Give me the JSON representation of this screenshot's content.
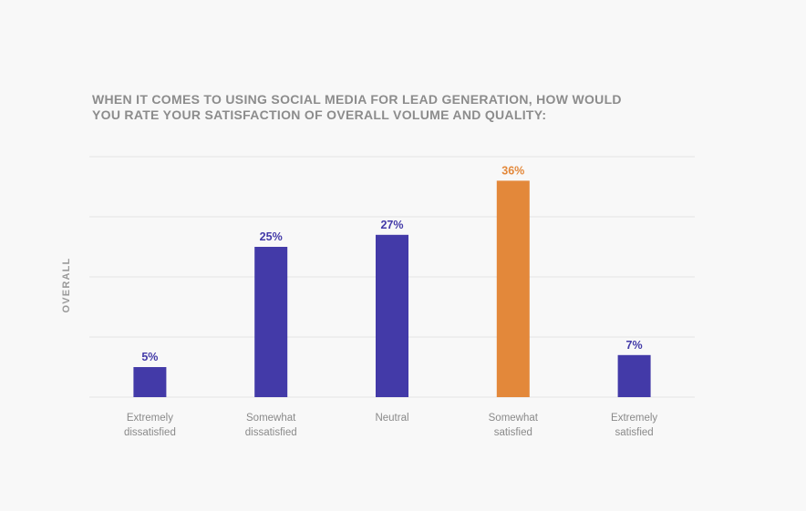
{
  "chart_data": {
    "type": "bar",
    "title_lines": [
      "WHEN IT COMES TO USING SOCIAL MEDIA FOR LEAD GENERATION, HOW WOULD",
      "YOU RATE YOUR SATISFACTION OF OVERALL VOLUME AND QUALITY:"
    ],
    "ylabel": "OVERALL",
    "xlabel": "",
    "categories": [
      [
        "Extremely",
        "dissatisfied"
      ],
      [
        "Somewhat",
        "dissatisfied"
      ],
      [
        "Neutral"
      ],
      [
        "Somewhat",
        "satisfied"
      ],
      [
        "Extremely",
        "satisfied"
      ]
    ],
    "values": [
      5,
      25,
      27,
      36,
      7
    ],
    "value_labels": [
      "5%",
      "25%",
      "27%",
      "36%",
      "7%"
    ],
    "ylim": [
      0,
      40
    ],
    "grid": true,
    "highlight_index": 3,
    "colors": {
      "bar": "#433aa8",
      "highlight": "#e3883a",
      "grid": "#e4e4e4"
    }
  }
}
